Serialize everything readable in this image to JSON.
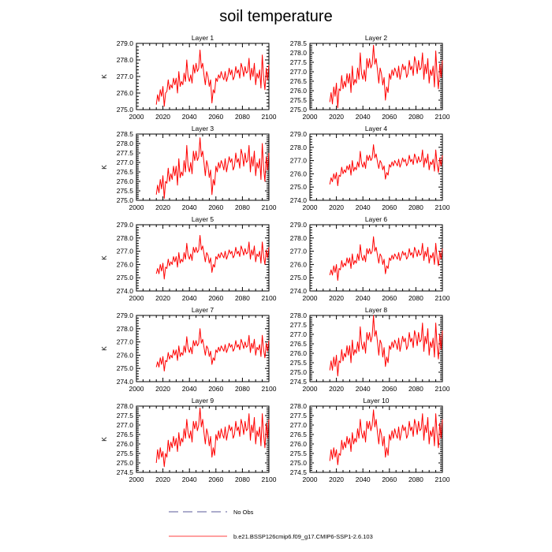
{
  "title": "soil temperature",
  "legend": [
    {
      "label": "No Obs",
      "style": "dashed",
      "color": "#5a5a9a"
    },
    {
      "label": "b.e21.BSSP126cmip6.f09_g17.CMIP6-SSP1-2.6.103",
      "style": "solid",
      "color": "#ff0000"
    }
  ],
  "colors": {
    "series": "#ff0000",
    "axis": "#000000"
  },
  "chart_data": [
    {
      "type": "line",
      "title": "Layer 1",
      "ylabel": "K",
      "xlim": [
        2000,
        2100
      ],
      "ylim": [
        275.0,
        279.0
      ],
      "xticks": [
        2000,
        2020,
        2040,
        2060,
        2080,
        2100
      ],
      "yticks": [
        "275.0",
        "276.0",
        "277.0",
        "278.0",
        "279.0"
      ],
      "x": {
        "start": 2015,
        "end": 2100,
        "step": 1
      },
      "y": [
        275.3,
        275.9,
        275.5,
        276.2,
        275.8,
        276.4,
        275.2,
        276.0,
        276.1,
        276.8,
        276.2,
        276.5,
        276.3,
        276.9,
        276.5,
        276.9,
        276.0,
        277.3,
        276.4,
        276.7,
        276.5,
        277.2,
        276.7,
        278.0,
        277.0,
        276.7,
        277.1,
        276.6,
        277.7,
        277.2,
        277.8,
        277.3,
        277.5,
        278.6,
        277.5,
        277.8,
        277.1,
        276.5,
        277.3,
        277.0,
        276.4,
        276.8,
        275.4,
        276.2,
        276.0,
        276.9,
        276.7,
        277.1,
        276.9,
        277.3,
        277.0,
        276.8,
        277.3,
        276.7,
        277.0,
        277.5,
        277.1,
        277.4,
        276.8,
        277.0,
        277.6,
        277.2,
        277.4,
        276.9,
        277.8,
        277.5,
        277.0,
        277.6,
        277.2,
        277.3,
        278.1,
        276.8,
        277.5,
        277.0,
        277.8,
        276.5,
        277.2,
        276.9,
        277.4,
        276.3,
        278.3,
        276.9,
        276.2,
        277.5,
        276.8,
        277.7
      ]
    },
    {
      "type": "line",
      "title": "Layer 2",
      "ylabel": "",
      "xlim": [
        2000,
        2100
      ],
      "ylim": [
        275.0,
        278.5
      ],
      "xticks": [
        2000,
        2020,
        2040,
        2060,
        2080,
        2100
      ],
      "yticks": [
        "275.0",
        "275.5",
        "276.0",
        "276.5",
        "277.0",
        "277.5",
        "278.0",
        "278.5"
      ],
      "x": {
        "start": 2015,
        "end": 2100,
        "step": 1
      },
      "y": [
        275.4,
        275.9,
        275.3,
        276.2,
        275.7,
        276.4,
        275.1,
        276.1,
        276.0,
        276.8,
        276.1,
        276.5,
        276.2,
        276.9,
        276.4,
        276.9,
        275.9,
        277.3,
        276.3,
        276.6,
        276.4,
        277.2,
        276.6,
        278.0,
        276.9,
        276.6,
        277.1,
        276.5,
        277.7,
        277.2,
        277.7,
        277.2,
        277.4,
        278.4,
        277.4,
        277.7,
        277.1,
        276.4,
        277.2,
        276.9,
        276.3,
        276.7,
        275.5,
        276.2,
        275.9,
        276.9,
        276.6,
        277.1,
        276.8,
        277.2,
        277.0,
        276.7,
        277.3,
        276.6,
        277.0,
        277.4,
        277.1,
        277.3,
        276.7,
        276.9,
        277.6,
        277.1,
        277.3,
        276.8,
        277.8,
        277.5,
        276.9,
        277.6,
        277.1,
        277.2,
        278.0,
        276.6,
        277.4,
        276.9,
        277.7,
        276.4,
        277.1,
        276.8,
        277.3,
        276.2,
        278.1,
        276.8,
        276.1,
        277.4,
        276.7,
        277.6
      ]
    },
    {
      "type": "line",
      "title": "Layer 3",
      "ylabel": "K",
      "xlim": [
        2000,
        2100
      ],
      "ylim": [
        275.0,
        278.5
      ],
      "xticks": [
        2000,
        2020,
        2040,
        2060,
        2080,
        2100
      ],
      "yticks": [
        "275.0",
        "275.5",
        "276.0",
        "276.5",
        "277.0",
        "277.5",
        "278.0",
        "278.5"
      ],
      "x": {
        "start": 2015,
        "end": 2100,
        "step": 1
      },
      "y": [
        275.3,
        275.8,
        275.4,
        276.1,
        275.6,
        276.3,
        275.1,
        276.0,
        275.9,
        276.7,
        276.0,
        276.4,
        276.1,
        276.8,
        276.3,
        276.8,
        275.8,
        277.2,
        276.2,
        276.5,
        276.3,
        277.1,
        276.5,
        277.9,
        276.8,
        276.5,
        277.0,
        276.4,
        277.6,
        277.1,
        277.6,
        277.1,
        277.3,
        278.3,
        277.3,
        277.6,
        277.0,
        276.3,
        277.1,
        276.8,
        276.2,
        276.6,
        275.3,
        276.1,
        275.8,
        276.8,
        276.5,
        277.0,
        276.7,
        277.1,
        276.9,
        276.6,
        277.2,
        276.5,
        276.9,
        277.3,
        277.0,
        277.2,
        276.6,
        276.8,
        277.5,
        277.0,
        277.2,
        276.7,
        277.7,
        277.4,
        276.8,
        277.5,
        277.0,
        277.1,
        277.9,
        276.5,
        277.3,
        276.8,
        277.6,
        276.3,
        277.0,
        276.7,
        277.2,
        276.1,
        278.0,
        276.7,
        276.0,
        277.3,
        276.6,
        277.5
      ]
    },
    {
      "type": "line",
      "title": "Layer 4",
      "ylabel": "",
      "xlim": [
        2000,
        2100
      ],
      "ylim": [
        274.0,
        279.0
      ],
      "xticks": [
        2000,
        2020,
        2040,
        2060,
        2080,
        2100
      ],
      "yticks": [
        "274.0",
        "275.0",
        "276.0",
        "277.0",
        "278.0",
        "279.0"
      ],
      "x": {
        "start": 2015,
        "end": 2100,
        "step": 1
      },
      "y": [
        275.2,
        275.7,
        275.4,
        276.0,
        275.6,
        276.1,
        275.1,
        275.9,
        275.8,
        276.5,
        276.0,
        276.3,
        276.1,
        276.6,
        276.3,
        276.7,
        275.9,
        277.0,
        276.2,
        276.5,
        276.3,
        276.9,
        276.5,
        277.7,
        276.8,
        276.5,
        276.9,
        276.4,
        277.4,
        277.0,
        277.4,
        277.0,
        277.2,
        278.2,
        277.2,
        277.5,
        276.9,
        276.4,
        277.0,
        276.8,
        276.3,
        276.6,
        275.6,
        276.1,
        275.9,
        276.7,
        276.5,
        276.9,
        276.6,
        277.0,
        276.8,
        276.6,
        277.1,
        276.5,
        276.8,
        277.2,
        276.9,
        277.1,
        276.6,
        276.8,
        277.4,
        276.9,
        277.1,
        276.7,
        277.5,
        277.2,
        276.8,
        277.3,
        276.9,
        277.0,
        277.8,
        276.5,
        277.2,
        276.8,
        277.5,
        276.3,
        276.9,
        276.7,
        277.1,
        276.2,
        277.8,
        276.7,
        276.1,
        277.2,
        276.6,
        277.4
      ]
    },
    {
      "type": "line",
      "title": "Layer 5",
      "ylabel": "K",
      "xlim": [
        2000,
        2100
      ],
      "ylim": [
        274.0,
        279.0
      ],
      "xticks": [
        2000,
        2020,
        2040,
        2060,
        2080,
        2100
      ],
      "yticks": [
        "274.0",
        "275.0",
        "276.0",
        "277.0",
        "278.0",
        "279.0"
      ],
      "x": {
        "start": 2015,
        "end": 2100,
        "step": 1
      },
      "y": [
        275.3,
        275.7,
        275.3,
        276.0,
        275.5,
        276.1,
        274.9,
        275.8,
        275.7,
        276.4,
        275.9,
        276.2,
        276.0,
        276.6,
        276.2,
        276.6,
        275.8,
        276.9,
        276.1,
        276.4,
        276.2,
        276.9,
        276.4,
        277.6,
        276.7,
        276.4,
        276.8,
        276.3,
        277.3,
        276.9,
        277.3,
        276.9,
        277.1,
        278.2,
        277.1,
        277.4,
        276.8,
        276.2,
        276.9,
        276.7,
        276.1,
        276.5,
        275.4,
        276.0,
        275.8,
        276.6,
        276.4,
        276.8,
        276.5,
        276.9,
        276.7,
        276.5,
        277.0,
        276.4,
        276.7,
        277.1,
        276.8,
        277.0,
        276.5,
        276.7,
        277.3,
        276.8,
        277.0,
        276.6,
        277.4,
        277.1,
        276.7,
        277.2,
        276.8,
        276.9,
        277.7,
        276.4,
        277.1,
        276.7,
        277.4,
        276.2,
        276.8,
        276.6,
        277.0,
        276.1,
        277.7,
        276.6,
        276.0,
        277.1,
        276.5,
        277.3
      ]
    },
    {
      "type": "line",
      "title": "Layer 6",
      "ylabel": "",
      "xlim": [
        2000,
        2100
      ],
      "ylim": [
        274.0,
        279.0
      ],
      "xticks": [
        2000,
        2020,
        2040,
        2060,
        2080,
        2100
      ],
      "yticks": [
        "274.0",
        "275.0",
        "276.0",
        "277.0",
        "278.0",
        "279.0"
      ],
      "x": {
        "start": 2015,
        "end": 2100,
        "step": 1
      },
      "y": [
        275.2,
        275.6,
        275.2,
        275.9,
        275.4,
        276.0,
        274.8,
        275.7,
        275.6,
        276.3,
        275.8,
        276.1,
        275.9,
        276.5,
        276.1,
        276.5,
        275.7,
        276.8,
        276.0,
        276.3,
        276.1,
        276.8,
        276.3,
        277.5,
        276.6,
        276.3,
        276.7,
        276.2,
        277.2,
        276.8,
        277.2,
        276.8,
        277.0,
        278.1,
        277.0,
        277.3,
        276.7,
        276.1,
        276.8,
        276.6,
        276.0,
        276.4,
        275.3,
        275.9,
        275.7,
        276.5,
        276.3,
        276.7,
        276.4,
        276.8,
        276.6,
        276.4,
        276.9,
        276.3,
        276.6,
        277.0,
        276.7,
        276.9,
        276.4,
        276.6,
        277.2,
        276.7,
        276.9,
        276.5,
        277.3,
        277.0,
        276.6,
        277.1,
        276.7,
        276.8,
        277.6,
        276.3,
        277.0,
        276.6,
        277.3,
        276.1,
        276.7,
        276.5,
        276.9,
        276.0,
        277.6,
        276.5,
        275.9,
        277.0,
        276.4,
        277.2
      ]
    },
    {
      "type": "line",
      "title": "Layer 7",
      "ylabel": "K",
      "xlim": [
        2000,
        2100
      ],
      "ylim": [
        274.0,
        279.0
      ],
      "xticks": [
        2000,
        2020,
        2040,
        2060,
        2080,
        2100
      ],
      "yticks": [
        "274.0",
        "275.0",
        "276.0",
        "277.0",
        "278.0",
        "279.0"
      ],
      "x": {
        "start": 2015,
        "end": 2100,
        "step": 1
      },
      "y": [
        275.1,
        275.5,
        275.1,
        275.8,
        275.3,
        275.9,
        274.8,
        275.6,
        275.5,
        276.2,
        275.7,
        276.0,
        275.8,
        276.4,
        276.0,
        276.4,
        275.6,
        276.7,
        275.9,
        276.2,
        276.0,
        276.7,
        276.2,
        277.4,
        276.5,
        276.2,
        276.6,
        276.1,
        277.1,
        276.7,
        277.1,
        276.7,
        276.9,
        278.0,
        276.9,
        277.2,
        276.6,
        276.0,
        276.7,
        276.5,
        275.9,
        276.3,
        275.3,
        275.8,
        275.6,
        276.4,
        276.2,
        276.6,
        276.3,
        276.7,
        276.5,
        276.3,
        276.8,
        276.2,
        276.5,
        276.9,
        276.6,
        276.8,
        276.3,
        276.5,
        277.1,
        276.6,
        276.8,
        276.4,
        277.2,
        276.9,
        276.5,
        277.0,
        276.6,
        276.7,
        277.5,
        276.2,
        276.9,
        276.5,
        277.2,
        276.0,
        276.6,
        276.4,
        276.8,
        275.9,
        277.5,
        276.4,
        275.8,
        276.9,
        276.3,
        277.1
      ]
    },
    {
      "type": "line",
      "title": "Layer 8",
      "ylabel": "",
      "xlim": [
        2000,
        2100
      ],
      "ylim": [
        274.5,
        278.0
      ],
      "xticks": [
        2000,
        2020,
        2040,
        2060,
        2080,
        2100
      ],
      "yticks": [
        "274.5",
        "275.0",
        "275.5",
        "276.0",
        "276.5",
        "277.0",
        "277.5",
        "278.0"
      ],
      "x": {
        "start": 2015,
        "end": 2100,
        "step": 1
      },
      "y": [
        275.1,
        275.6,
        275.1,
        275.8,
        275.3,
        275.9,
        274.8,
        275.6,
        275.5,
        276.2,
        275.6,
        276.0,
        275.8,
        276.4,
        275.9,
        276.4,
        275.5,
        276.7,
        275.9,
        276.2,
        276.0,
        276.6,
        276.1,
        277.4,
        276.5,
        276.2,
        276.6,
        276.0,
        277.1,
        276.7,
        277.1,
        276.6,
        276.9,
        278.0,
        276.9,
        277.2,
        276.6,
        275.9,
        276.7,
        276.5,
        275.8,
        276.3,
        275.3,
        275.8,
        275.5,
        276.4,
        276.2,
        276.6,
        276.3,
        276.7,
        276.5,
        276.2,
        276.8,
        276.1,
        276.5,
        276.9,
        276.6,
        276.8,
        276.2,
        276.4,
        277.1,
        276.6,
        276.8,
        276.3,
        277.2,
        276.9,
        276.4,
        277.1,
        276.6,
        276.7,
        277.6,
        276.1,
        276.9,
        276.5,
        277.3,
        275.9,
        276.6,
        276.3,
        276.8,
        275.8,
        277.6,
        276.4,
        275.7,
        277.0,
        276.2,
        277.2
      ]
    },
    {
      "type": "line",
      "title": "Layer 9",
      "ylabel": "K",
      "xlim": [
        2000,
        2100
      ],
      "ylim": [
        274.5,
        278.0
      ],
      "xticks": [
        2000,
        2020,
        2040,
        2060,
        2080,
        2100
      ],
      "yticks": [
        "274.5",
        "275.0",
        "275.5",
        "276.0",
        "276.5",
        "277.0",
        "277.5",
        "278.0"
      ],
      "x": {
        "start": 2015,
        "end": 2100,
        "step": 1
      },
      "y": [
        275.0,
        275.7,
        275.2,
        275.8,
        275.3,
        275.6,
        274.8,
        275.5,
        275.3,
        276.2,
        275.6,
        276.1,
        275.8,
        276.4,
        275.9,
        276.3,
        275.6,
        276.6,
        275.9,
        276.3,
        276.1,
        276.8,
        276.3,
        277.3,
        276.6,
        276.3,
        276.7,
        276.1,
        277.2,
        276.8,
        277.2,
        276.7,
        277.0,
        277.9,
        276.9,
        277.3,
        276.6,
        276.0,
        276.8,
        276.5,
        275.9,
        276.4,
        275.3,
        275.8,
        275.4,
        276.5,
        276.2,
        276.7,
        276.3,
        276.8,
        276.5,
        276.3,
        276.9,
        276.2,
        276.6,
        277.0,
        276.7,
        276.9,
        276.3,
        276.5,
        277.2,
        276.7,
        276.9,
        276.4,
        277.3,
        277.0,
        276.5,
        277.2,
        276.7,
        276.8,
        277.6,
        276.2,
        277.0,
        276.6,
        277.4,
        276.0,
        276.7,
        276.4,
        276.9,
        275.9,
        277.6,
        276.5,
        275.8,
        277.1,
        276.3,
        277.3
      ]
    },
    {
      "type": "line",
      "title": "Layer 10",
      "ylabel": "",
      "xlim": [
        2000,
        2100
      ],
      "ylim": [
        274.5,
        278.0
      ],
      "xticks": [
        2000,
        2020,
        2040,
        2060,
        2080,
        2100
      ],
      "yticks": [
        "274.5",
        "275.0",
        "275.5",
        "276.0",
        "276.5",
        "277.0",
        "277.5",
        "278.0"
      ],
      "x": {
        "start": 2015,
        "end": 2100,
        "step": 1
      },
      "y": [
        275.1,
        275.7,
        275.2,
        275.8,
        275.3,
        275.7,
        274.9,
        275.5,
        275.4,
        276.2,
        275.7,
        276.1,
        275.8,
        276.4,
        276.0,
        276.3,
        275.6,
        276.6,
        276.0,
        276.3,
        276.1,
        276.8,
        276.3,
        277.3,
        276.6,
        276.3,
        276.7,
        276.1,
        277.2,
        276.8,
        277.2,
        276.7,
        277.0,
        277.8,
        276.9,
        277.3,
        276.6,
        276.0,
        276.8,
        276.5,
        275.9,
        276.4,
        275.3,
        275.8,
        275.4,
        276.5,
        276.2,
        276.7,
        276.3,
        276.8,
        276.5,
        276.3,
        276.9,
        276.2,
        276.6,
        277.0,
        276.7,
        276.9,
        276.3,
        276.5,
        277.2,
        276.7,
        276.9,
        276.4,
        277.3,
        277.0,
        276.5,
        277.2,
        276.7,
        276.8,
        277.6,
        276.2,
        277.0,
        276.6,
        277.4,
        276.0,
        276.7,
        276.4,
        276.9,
        275.9,
        277.6,
        276.5,
        275.8,
        277.1,
        276.3,
        277.3
      ]
    }
  ]
}
